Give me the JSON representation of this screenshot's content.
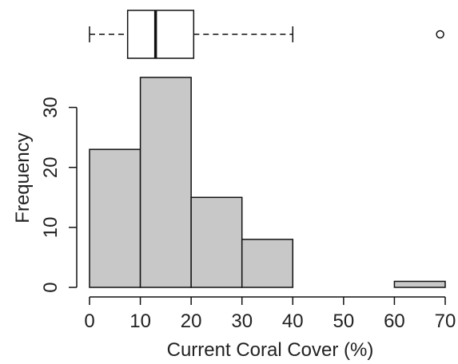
{
  "chart_data": {
    "type": "bar",
    "subtype": "histogram-with-boxplot",
    "xlabel": "Current Coral Cover (%)",
    "ylabel": "Frequency",
    "title": "",
    "bins": [
      {
        "start": 0,
        "end": 10,
        "count": 23
      },
      {
        "start": 10,
        "end": 20,
        "count": 35
      },
      {
        "start": 20,
        "end": 30,
        "count": 15
      },
      {
        "start": 30,
        "end": 40,
        "count": 8
      },
      {
        "start": 40,
        "end": 50,
        "count": 0
      },
      {
        "start": 50,
        "end": 60,
        "count": 0
      },
      {
        "start": 60,
        "end": 70,
        "count": 1
      }
    ],
    "xlim": [
      0,
      70
    ],
    "ylim": [
      0,
      35
    ],
    "xticks": [
      "0",
      "10",
      "20",
      "30",
      "40",
      "50",
      "60",
      "70"
    ],
    "yticks": [
      "0",
      "10",
      "20",
      "30"
    ],
    "boxplot": {
      "whisker_low": 0,
      "q1": 7.5,
      "median": 13,
      "q3": 20.5,
      "whisker_high": 40,
      "outliers": [
        69
      ]
    },
    "colors": {
      "bar_fill": "#c8c8c8",
      "bar_stroke": "#111111",
      "axis": "#111111",
      "box_stroke": "#111111"
    },
    "grid": false,
    "legend": "none"
  }
}
